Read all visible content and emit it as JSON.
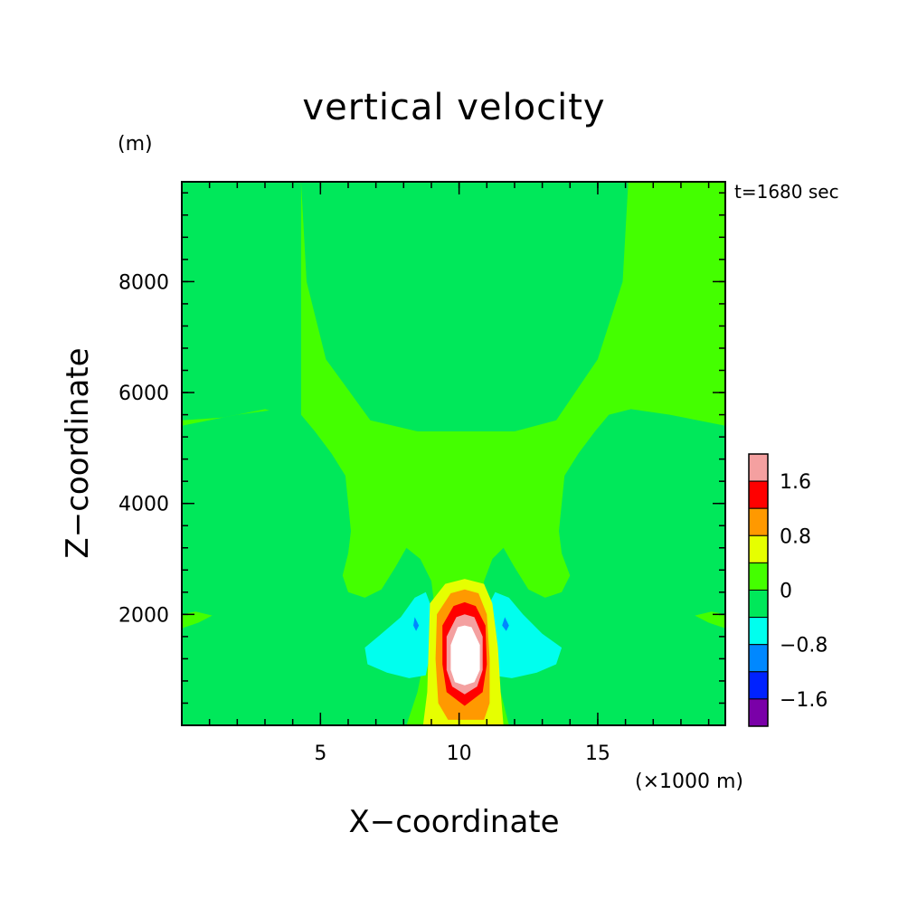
{
  "chart_data": {
    "type": "heatmap",
    "title": "vertical velocity",
    "time_label": "t=1680 sec",
    "xlabel": "X−coordinate",
    "ylabel": "Z−coordinate",
    "x_unit": "(×1000 m)",
    "y_unit": "(m)",
    "xlim": [
      0,
      19.6
    ],
    "ylim": [
      0,
      9800
    ],
    "x_ticks": [
      {
        "value": 5,
        "label": "5"
      },
      {
        "value": 10,
        "label": "10"
      },
      {
        "value": 15,
        "label": "15"
      }
    ],
    "y_ticks": [
      {
        "value": 2000,
        "label": "2000"
      },
      {
        "value": 4000,
        "label": "4000"
      },
      {
        "value": 6000,
        "label": "6000"
      },
      {
        "value": 8000,
        "label": "8000"
      }
    ],
    "x_minor_step": 1,
    "y_minor_step": 400,
    "colorbar": {
      "levels": [
        {
          "from": 1.6,
          "to": 2.0,
          "color": "#f4a0a0"
        },
        {
          "from": 1.2,
          "to": 1.6,
          "color": "#ff0000"
        },
        {
          "from": 0.8,
          "to": 1.2,
          "color": "#ff9900"
        },
        {
          "from": 0.4,
          "to": 0.8,
          "color": "#e6ff00"
        },
        {
          "from": 0.0,
          "to": 0.4,
          "color": "#44ff00"
        },
        {
          "from": -0.4,
          "to": 0.0,
          "color": "#00e85a"
        },
        {
          "from": -0.8,
          "to": -0.4,
          "color": "#00ffee"
        },
        {
          "from": -1.2,
          "to": -0.8,
          "color": "#0088ff"
        },
        {
          "from": -1.6,
          "to": -1.2,
          "color": "#0022ff"
        },
        {
          "from": -2.0,
          "to": -1.6,
          "color": "#7a00a8"
        }
      ],
      "peak_color": "#ffffff",
      "tick_labels": [
        {
          "value": 1.6,
          "label": "1.6"
        },
        {
          "value": 0.8,
          "label": "0.8"
        },
        {
          "value": 0.0,
          "label": "0"
        },
        {
          "value": -0.8,
          "label": "−0.8"
        },
        {
          "value": -1.6,
          "label": "−1.6"
        }
      ]
    },
    "regions": [
      {
        "name": "upper-downdraft",
        "level": -0.4,
        "points": [
          [
            4.3,
            9800
          ],
          [
            4.5,
            8000
          ],
          [
            5.2,
            6600
          ],
          [
            6.8,
            5500
          ],
          [
            8.5,
            5300
          ],
          [
            10,
            5300
          ],
          [
            12,
            5300
          ],
          [
            13.5,
            5500
          ],
          [
            15,
            6600
          ],
          [
            15.9,
            8000
          ],
          [
            16.1,
            9800
          ]
        ]
      },
      {
        "name": "left-downdraft",
        "level": -0.4,
        "points": [
          [
            0,
            9800
          ],
          [
            0,
            5500
          ],
          [
            1.5,
            5550
          ],
          [
            3,
            5700
          ],
          [
            4.3,
            5500
          ],
          [
            4.3,
            9800
          ]
        ]
      },
      {
        "name": "left-lobe",
        "level": -0.4,
        "points": [
          [
            0,
            5400
          ],
          [
            2,
            5600
          ],
          [
            3.5,
            5700
          ],
          [
            4.3,
            5600
          ],
          [
            4.8,
            5300
          ],
          [
            5.4,
            4900
          ],
          [
            5.9,
            4500
          ],
          [
            6.0,
            4000
          ],
          [
            6.1,
            3500
          ],
          [
            6.0,
            3100
          ],
          [
            5.8,
            2700
          ],
          [
            6.0,
            2400
          ],
          [
            6.6,
            2300
          ],
          [
            7.2,
            2450
          ],
          [
            7.7,
            2850
          ],
          [
            8.1,
            3200
          ],
          [
            8.6,
            3000
          ],
          [
            9.0,
            2600
          ],
          [
            9.1,
            2200
          ],
          [
            8.9,
            1600
          ],
          [
            8.5,
            600
          ],
          [
            8.1,
            0
          ],
          [
            0,
            0
          ],
          [
            0,
            1750
          ],
          [
            0.6,
            1850
          ],
          [
            1.1,
            1980
          ],
          [
            0.5,
            2050
          ],
          [
            0,
            2000
          ]
        ]
      },
      {
        "name": "right-lobe",
        "level": -0.4,
        "points": [
          [
            19.6,
            5400
          ],
          [
            17.6,
            5600
          ],
          [
            16.2,
            5700
          ],
          [
            15.4,
            5600
          ],
          [
            14.9,
            5300
          ],
          [
            14.3,
            4900
          ],
          [
            13.8,
            4500
          ],
          [
            13.7,
            4000
          ],
          [
            13.6,
            3500
          ],
          [
            13.7,
            3100
          ],
          [
            14.0,
            2700
          ],
          [
            13.7,
            2400
          ],
          [
            13.1,
            2300
          ],
          [
            12.5,
            2450
          ],
          [
            12.0,
            2850
          ],
          [
            11.6,
            3200
          ],
          [
            11.2,
            3000
          ],
          [
            10.9,
            2600
          ],
          [
            10.8,
            2200
          ],
          [
            11.0,
            1600
          ],
          [
            11.5,
            600
          ],
          [
            11.8,
            0
          ],
          [
            19.6,
            0
          ],
          [
            19.6,
            1750
          ],
          [
            19.0,
            1850
          ],
          [
            18.5,
            1980
          ],
          [
            19.1,
            2050
          ],
          [
            19.6,
            2000
          ]
        ]
      },
      {
        "name": "left-cyan-downdraft",
        "level": -0.8,
        "points": [
          [
            8.8,
            2400
          ],
          [
            8.4,
            2300
          ],
          [
            7.9,
            1950
          ],
          [
            7.2,
            1650
          ],
          [
            6.6,
            1400
          ],
          [
            6.7,
            1100
          ],
          [
            7.4,
            950
          ],
          [
            8.2,
            850
          ],
          [
            8.8,
            900
          ],
          [
            9.0,
            1400
          ],
          [
            9.1,
            2000
          ]
        ]
      },
      {
        "name": "right-cyan-downdraft",
        "level": -0.8,
        "points": [
          [
            11.3,
            2400
          ],
          [
            11.8,
            2300
          ],
          [
            12.3,
            2000
          ],
          [
            13.0,
            1650
          ],
          [
            13.7,
            1400
          ],
          [
            13.5,
            1100
          ],
          [
            12.8,
            950
          ],
          [
            11.9,
            850
          ],
          [
            11.2,
            900
          ],
          [
            11.0,
            1400
          ],
          [
            10.9,
            2000
          ]
        ]
      },
      {
        "name": "left-blue-core",
        "level": -1.2,
        "points": [
          [
            8.4,
            1950
          ],
          [
            8.55,
            1800
          ],
          [
            8.45,
            1700
          ],
          [
            8.35,
            1800
          ]
        ]
      },
      {
        "name": "right-blue-core",
        "level": -1.2,
        "points": [
          [
            11.65,
            1950
          ],
          [
            11.8,
            1800
          ],
          [
            11.7,
            1700
          ],
          [
            11.55,
            1800
          ]
        ]
      },
      {
        "name": "updraft-yellow",
        "level": 0.4,
        "points": [
          [
            8.95,
            2200
          ],
          [
            9.5,
            2550
          ],
          [
            10.2,
            2640
          ],
          [
            10.9,
            2550
          ],
          [
            11.2,
            2200
          ],
          [
            11.4,
            1400
          ],
          [
            11.5,
            600
          ],
          [
            11.6,
            0
          ],
          [
            8.7,
            0
          ],
          [
            8.85,
            600
          ],
          [
            8.9,
            1400
          ]
        ]
      },
      {
        "name": "updraft-orange",
        "level": 0.8,
        "points": [
          [
            9.2,
            2000
          ],
          [
            9.7,
            2380
          ],
          [
            10.2,
            2450
          ],
          [
            10.7,
            2380
          ],
          [
            11.0,
            2000
          ],
          [
            11.1,
            1200
          ],
          [
            11.1,
            400
          ],
          [
            10.9,
            100
          ],
          [
            9.6,
            100
          ],
          [
            9.25,
            400
          ],
          [
            9.15,
            1200
          ]
        ]
      },
      {
        "name": "updraft-red",
        "level": 1.2,
        "points": [
          [
            9.4,
            1800
          ],
          [
            9.8,
            2150
          ],
          [
            10.2,
            2220
          ],
          [
            10.6,
            2150
          ],
          [
            10.95,
            1800
          ],
          [
            11.0,
            1100
          ],
          [
            10.85,
            600
          ],
          [
            10.2,
            350
          ],
          [
            9.55,
            600
          ],
          [
            9.4,
            1100
          ]
        ]
      },
      {
        "name": "updraft-pink",
        "level": 1.6,
        "points": [
          [
            9.55,
            1600
          ],
          [
            9.9,
            1950
          ],
          [
            10.2,
            2000
          ],
          [
            10.55,
            1950
          ],
          [
            10.85,
            1600
          ],
          [
            10.85,
            1000
          ],
          [
            10.65,
            700
          ],
          [
            10.2,
            560
          ],
          [
            9.75,
            700
          ],
          [
            9.55,
            1000
          ]
        ]
      }
    ],
    "peak_region": {
      "name": "updraft-core",
      "points": [
        [
          9.7,
          1450
        ],
        [
          9.95,
          1770
        ],
        [
          10.2,
          1800
        ],
        [
          10.45,
          1770
        ],
        [
          10.75,
          1450
        ],
        [
          10.75,
          1000
        ],
        [
          10.55,
          780
        ],
        [
          10.2,
          720
        ],
        [
          9.85,
          780
        ],
        [
          9.7,
          1000
        ]
      ]
    }
  }
}
